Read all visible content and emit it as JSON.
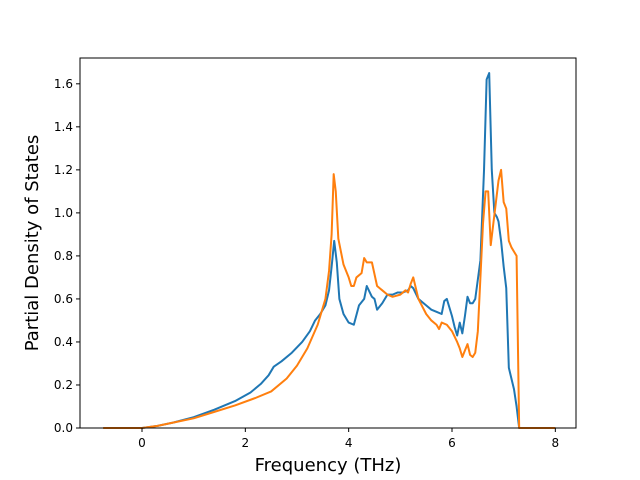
{
  "chart_data": {
    "type": "line",
    "title": "",
    "xlabel": "Frequency (THz)",
    "ylabel": "Partial Density of States",
    "xlim": [
      -1.2,
      8.4
    ],
    "ylim": [
      0.0,
      1.72
    ],
    "xticks": [
      0,
      2,
      4,
      6,
      8
    ],
    "yticks": [
      0.0,
      0.2,
      0.4,
      0.6,
      0.8,
      1.0,
      1.2,
      1.4,
      1.6
    ],
    "xtick_labels": [
      "0",
      "2",
      "4",
      "6",
      "8"
    ],
    "ytick_labels": [
      "0.0",
      "0.2",
      "0.4",
      "0.6",
      "0.8",
      "1.0",
      "1.2",
      "1.4",
      "1.6"
    ],
    "grid": false,
    "series": [
      {
        "color": "#1f77b4",
        "x": [
          -0.75,
          0.0,
          0.3,
          0.6,
          1.0,
          1.4,
          1.8,
          2.1,
          2.3,
          2.45,
          2.55,
          2.7,
          2.9,
          3.1,
          3.25,
          3.35,
          3.45,
          3.55,
          3.62,
          3.67,
          3.72,
          3.77,
          3.82,
          3.9,
          4.0,
          4.1,
          4.2,
          4.3,
          4.35,
          4.45,
          4.5,
          4.55,
          4.65,
          4.75,
          4.85,
          4.95,
          5.05,
          5.15,
          5.2,
          5.25,
          5.35,
          5.5,
          5.6,
          5.7,
          5.8,
          5.85,
          5.9,
          6.0,
          6.05,
          6.1,
          6.15,
          6.2,
          6.25,
          6.3,
          6.35,
          6.4,
          6.45,
          6.55,
          6.62,
          6.67,
          6.72,
          6.77,
          6.82,
          6.87,
          6.9,
          6.95,
          7.0,
          7.05,
          7.1,
          7.2,
          7.25,
          7.3,
          8.0
        ],
        "y": [
          0.0,
          0.0,
          0.01,
          0.025,
          0.05,
          0.085,
          0.125,
          0.165,
          0.205,
          0.245,
          0.285,
          0.31,
          0.35,
          0.4,
          0.45,
          0.5,
          0.53,
          0.57,
          0.64,
          0.75,
          0.87,
          0.77,
          0.6,
          0.53,
          0.49,
          0.48,
          0.57,
          0.6,
          0.66,
          0.61,
          0.6,
          0.55,
          0.58,
          0.62,
          0.62,
          0.63,
          0.63,
          0.64,
          0.66,
          0.65,
          0.6,
          0.57,
          0.55,
          0.54,
          0.53,
          0.59,
          0.6,
          0.52,
          0.47,
          0.43,
          0.49,
          0.44,
          0.52,
          0.61,
          0.58,
          0.58,
          0.6,
          0.78,
          1.2,
          1.62,
          1.65,
          1.2,
          1.0,
          0.98,
          0.96,
          0.87,
          0.75,
          0.65,
          0.28,
          0.18,
          0.1,
          0.0,
          0.0
        ]
      },
      {
        "color": "#ff7f0e",
        "x": [
          -0.75,
          0.0,
          0.3,
          0.6,
          1.0,
          1.4,
          1.8,
          2.2,
          2.5,
          2.8,
          3.0,
          3.2,
          3.4,
          3.55,
          3.62,
          3.67,
          3.71,
          3.75,
          3.8,
          3.9,
          4.0,
          4.05,
          4.1,
          4.15,
          4.25,
          4.3,
          4.35,
          4.45,
          4.55,
          4.65,
          4.75,
          4.85,
          5.0,
          5.1,
          5.15,
          5.2,
          5.25,
          5.35,
          5.5,
          5.6,
          5.7,
          5.75,
          5.8,
          5.9,
          6.0,
          6.1,
          6.15,
          6.2,
          6.25,
          6.3,
          6.35,
          6.4,
          6.45,
          6.5,
          6.55,
          6.6,
          6.65,
          6.7,
          6.75,
          6.8,
          6.85,
          6.9,
          6.95,
          7.0,
          7.05,
          7.1,
          7.15,
          7.2,
          7.25,
          7.3,
          8.0
        ],
        "y": [
          0.0,
          0.0,
          0.01,
          0.025,
          0.045,
          0.075,
          0.105,
          0.14,
          0.17,
          0.23,
          0.29,
          0.37,
          0.48,
          0.6,
          0.73,
          0.9,
          1.18,
          1.1,
          0.88,
          0.76,
          0.7,
          0.66,
          0.66,
          0.7,
          0.72,
          0.79,
          0.77,
          0.77,
          0.66,
          0.64,
          0.62,
          0.61,
          0.62,
          0.64,
          0.63,
          0.67,
          0.7,
          0.6,
          0.53,
          0.5,
          0.48,
          0.46,
          0.49,
          0.48,
          0.45,
          0.4,
          0.37,
          0.33,
          0.36,
          0.39,
          0.34,
          0.33,
          0.35,
          0.45,
          0.7,
          0.95,
          1.1,
          1.1,
          0.85,
          0.95,
          1.05,
          1.15,
          1.2,
          1.05,
          1.02,
          0.87,
          0.84,
          0.82,
          0.8,
          0.0,
          0.0
        ]
      }
    ]
  }
}
